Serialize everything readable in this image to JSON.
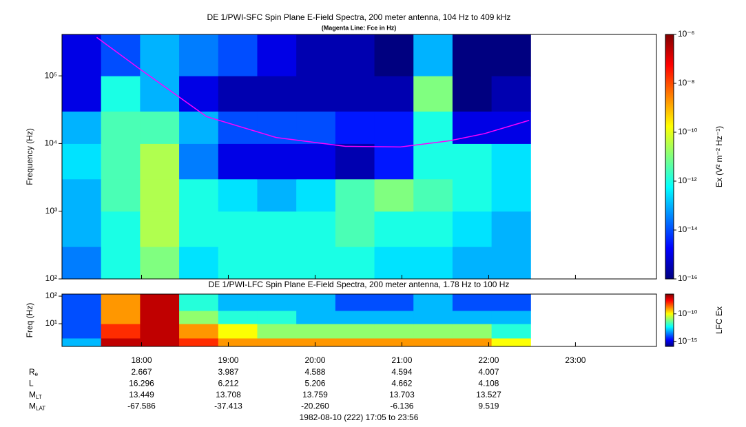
{
  "chart_data": [
    {
      "type": "heatmap",
      "title": "DE 1/PWI-SFC  Spin Plane E-Field Spectra, 200 meter antenna, 104 Hz to 409 kHz",
      "subtitle": "(Magenta Line: Fce in Hz)",
      "y_label": "Frequency (Hz)",
      "colorbar_label": "Ex (V² m⁻² Hz⁻¹)",
      "colormap": "jet",
      "log_y": true,
      "xlim": [
        1025,
        1436
      ],
      "ylim": [
        100,
        409000
      ],
      "yticks": [
        {
          "value": 100,
          "label": "10²"
        },
        {
          "value": 1000,
          "label": "10³"
        },
        {
          "value": 10000,
          "label": "10⁴"
        },
        {
          "value": 100000,
          "label": "10⁵"
        }
      ],
      "zlim": [
        1e-16,
        1e-06
      ],
      "zticks": [
        {
          "value": 1e-06,
          "label": "10⁻⁶"
        },
        {
          "value": 1e-08,
          "label": "10⁻⁸"
        },
        {
          "value": 1e-10,
          "label": "10⁻¹⁰"
        },
        {
          "value": 1e-12,
          "label": "10⁻¹²"
        },
        {
          "value": 1e-14,
          "label": "10⁻¹⁴"
        },
        {
          "value": 1e-16,
          "label": "10⁻¹⁶"
        }
      ],
      "x_edges": [
        1025,
        1052,
        1079,
        1106,
        1133,
        1160,
        1187,
        1214,
        1241,
        1268,
        1295,
        1322,
        1349
      ],
      "y_edges": [
        100,
        300,
        1000,
        3000,
        10000,
        30000,
        100000,
        409000
      ],
      "z": [
        [
          3e-14,
          1e-12,
          1e-11,
          3e-13,
          1e-12,
          1e-12,
          1e-12,
          1e-12,
          3e-13,
          3e-13,
          1e-13,
          1e-13
        ],
        [
          1e-13,
          1e-12,
          3e-11,
          1e-12,
          1e-12,
          1e-12,
          1e-12,
          3e-12,
          1e-12,
          1e-12,
          3e-13,
          1e-13
        ],
        [
          1e-13,
          3e-12,
          3e-11,
          1e-12,
          3e-13,
          1e-13,
          3e-13,
          3e-12,
          1e-11,
          3e-12,
          1e-12,
          3e-13
        ],
        [
          3e-13,
          3e-12,
          3e-11,
          3e-14,
          1e-15,
          1e-15,
          1e-15,
          3e-16,
          3e-15,
          1e-12,
          1e-12,
          3e-13
        ],
        [
          1e-13,
          3e-12,
          3e-12,
          1e-13,
          1e-14,
          1e-14,
          1e-14,
          3e-15,
          3e-15,
          1e-12,
          1e-15,
          1e-15
        ],
        [
          1e-15,
          1e-12,
          1e-13,
          1e-15,
          3e-16,
          3e-16,
          3e-16,
          3e-16,
          3e-16,
          1e-11,
          1e-16,
          3e-16
        ],
        [
          1e-15,
          1e-14,
          1e-13,
          3e-14,
          1e-14,
          1e-15,
          3e-16,
          3e-16,
          1e-16,
          1e-13,
          1e-16,
          1e-16
        ]
      ],
      "overlay": {
        "color": "#ff00ff",
        "x": [
          1049,
          1078,
          1125,
          1173,
          1221,
          1259,
          1293,
          1317,
          1348
        ],
        "y": [
          370000,
          130000,
          25000,
          12300,
          9100,
          8900,
          11000,
          14000,
          22000
        ]
      }
    },
    {
      "type": "heatmap",
      "title": "DE 1/PWI-LFC  Spin Plane E-Field Spectra, 200 meter antenna, 1.78 Hz to 100 Hz",
      "y_label": "Freq (Hz)",
      "colorbar_label": "LFC Ex",
      "colormap": "jet",
      "log_y": true,
      "xlim": [
        1025,
        1436
      ],
      "xticks": [
        {
          "value": 1080,
          "label": "18:00"
        },
        {
          "value": 1140,
          "label": "19:00"
        },
        {
          "value": 1200,
          "label": "20:00"
        },
        {
          "value": 1260,
          "label": "21:00"
        },
        {
          "value": 1320,
          "label": "22:00"
        },
        {
          "value": 1380,
          "label": "23:00"
        }
      ],
      "ylim": [
        1.5,
        119
      ],
      "yticks": [
        {
          "value": 10,
          "label": "10¹"
        },
        {
          "value": 100,
          "label": "10²"
        }
      ],
      "zlim": [
        1.2e-16,
        4e-07
      ],
      "zticks": [
        {
          "value": 1e-10,
          "label": "10⁻¹⁰"
        },
        {
          "value": 1e-15,
          "label": "10⁻¹⁵"
        }
      ],
      "x_edges": [
        1025,
        1052,
        1079,
        1106,
        1133,
        1160,
        1187,
        1214,
        1241,
        1268,
        1295,
        1322,
        1349
      ],
      "y_edges": [
        1.5,
        3,
        10,
        30,
        119
      ],
      "z": [
        [
          1e-13,
          1e-07,
          1e-07,
          1e-08,
          1e-09,
          1e-09,
          1e-09,
          1e-09,
          1e-09,
          1e-09,
          1e-09,
          1e-10
        ],
        [
          1e-14,
          1e-08,
          1e-07,
          1e-09,
          1e-10,
          1e-11,
          1e-11,
          1e-11,
          1e-11,
          1e-11,
          1e-11,
          1e-12
        ],
        [
          1e-14,
          1e-09,
          1e-07,
          1e-11,
          1e-12,
          1e-12,
          1e-13,
          1e-13,
          1e-13,
          1e-13,
          1e-13,
          1e-13
        ],
        [
          1e-14,
          1e-09,
          1e-07,
          1e-12,
          1e-13,
          1e-13,
          1e-13,
          1e-14,
          1e-14,
          1e-13,
          1e-14,
          1e-14
        ]
      ]
    }
  ],
  "ephemeris": [
    {
      "label": {
        "main": "R",
        "sub": "e"
      },
      "values": [
        "2.667",
        "3.987",
        "4.588",
        "4.594",
        "4.007"
      ]
    },
    {
      "label": {
        "main": "L",
        "sub": ""
      },
      "values": [
        "16.296",
        "6.212",
        "5.206",
        "4.662",
        "4.108"
      ]
    },
    {
      "label": {
        "main": "M",
        "sub": "LT"
      },
      "values": [
        "13.449",
        "13.708",
        "13.759",
        "13.703",
        "13.527"
      ]
    },
    {
      "label": {
        "main": "M",
        "sub": "LAT"
      },
      "values": [
        "-67.586",
        "-37.413",
        "-20.260",
        "-6.136",
        "9.519"
      ]
    }
  ],
  "footer": "1982-08-10 (222) 17:05 to 23:56"
}
